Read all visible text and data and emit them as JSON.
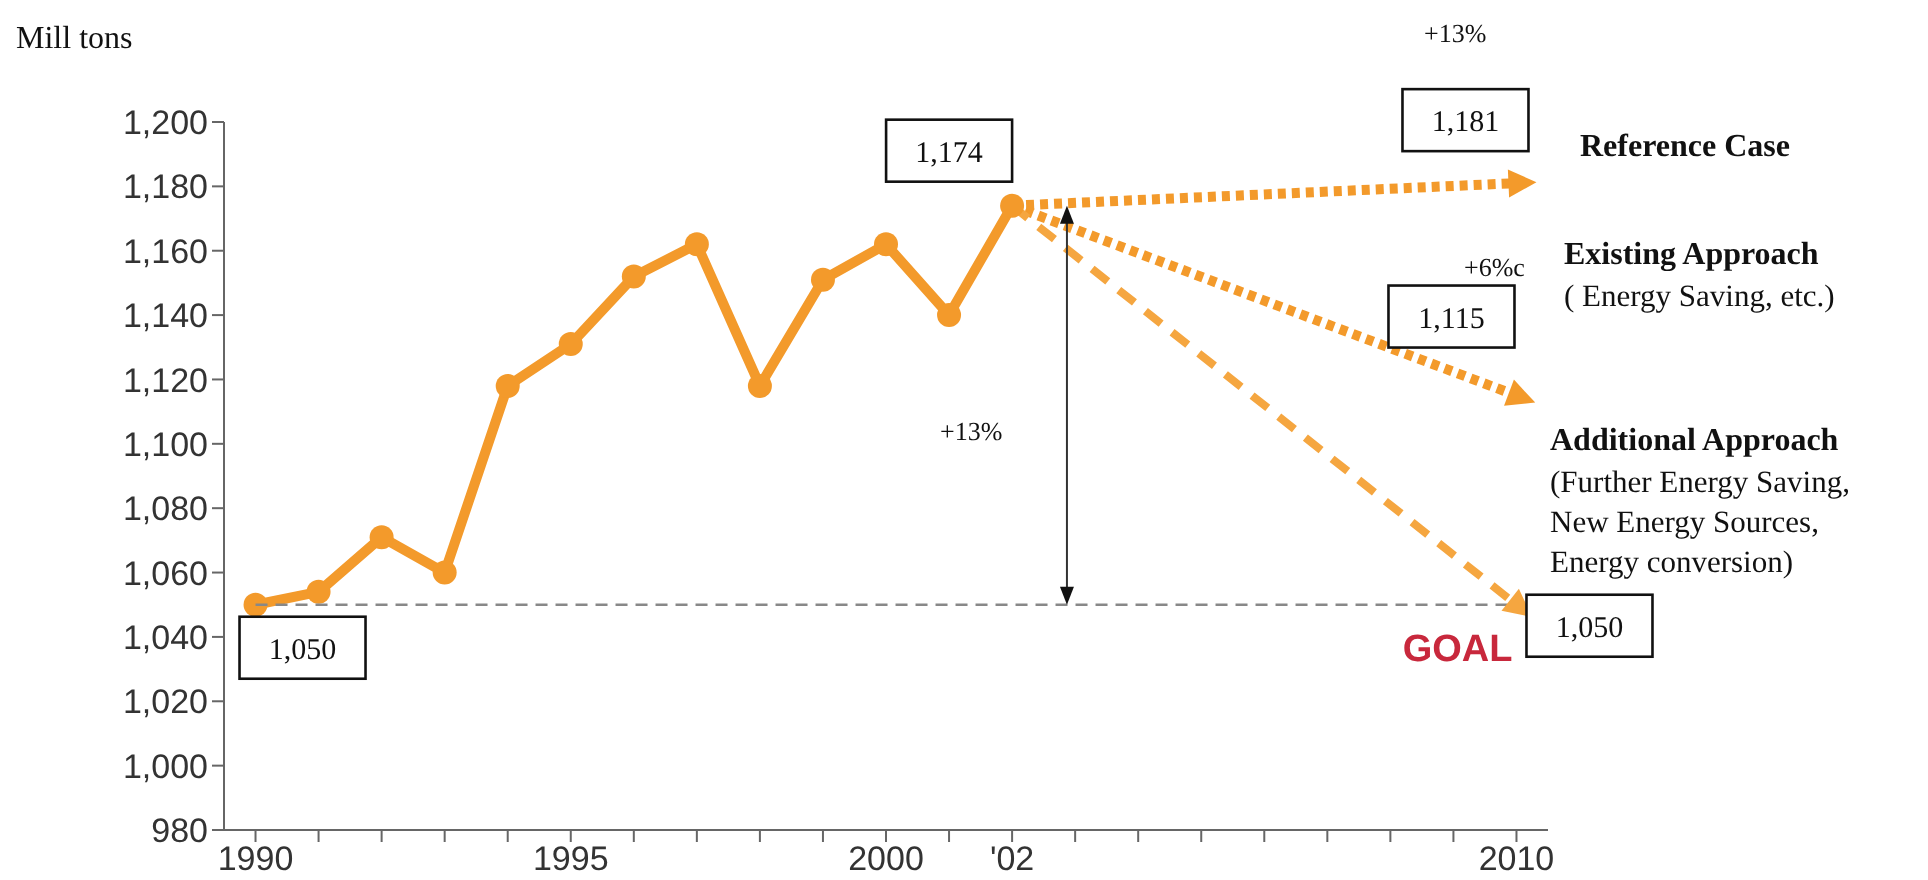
{
  "chart_data": {
    "type": "line",
    "ylabel": "Mill tons",
    "xlim": [
      1989.5,
      2010.5
    ],
    "xticks": [
      1990,
      {
        "value": 1991,
        "label": null
      },
      {
        "value": 1992,
        "label": null
      },
      {
        "value": 1993,
        "label": null
      },
      {
        "value": 1994,
        "label": null
      },
      1995,
      {
        "value": 1996,
        "label": null
      },
      {
        "value": 1997,
        "label": null
      },
      {
        "value": 1998,
        "label": null
      },
      {
        "value": 1999,
        "label": null
      },
      2000,
      {
        "value": 2001,
        "label": null
      },
      {
        "value": 2002,
        "label": "'02"
      },
      {
        "value": 2003,
        "label": null
      },
      {
        "value": 2004,
        "label": null
      },
      {
        "value": 2005,
        "label": null
      },
      {
        "value": 2006,
        "label": null
      },
      {
        "value": 2007,
        "label": null
      },
      {
        "value": 2008,
        "label": null
      },
      {
        "value": 2009,
        "label": null
      },
      2010
    ],
    "ylim": [
      980,
      1200
    ],
    "yticks": [
      {
        "value": 980,
        "label": "980"
      },
      {
        "value": 1000,
        "label": "1,000"
      },
      {
        "value": 1020,
        "label": "1,020"
      },
      {
        "value": 1040,
        "label": "1,040"
      },
      {
        "value": 1060,
        "label": "1,060"
      },
      {
        "value": 1080,
        "label": "1,080"
      },
      {
        "value": 1100,
        "label": "1,100"
      },
      {
        "value": 1120,
        "label": "1,120"
      },
      {
        "value": 1140,
        "label": "1,140"
      },
      {
        "value": 1160,
        "label": "1,160"
      },
      {
        "value": 1180,
        "label": "1,180"
      },
      {
        "value": 1200,
        "label": "1,200"
      }
    ],
    "series": [
      {
        "color": "#f39a2b",
        "marker": "circle",
        "line_style": "solid",
        "x": [
          1990,
          1991,
          1992,
          1993,
          1994,
          1995,
          1996,
          1997,
          1998,
          1999,
          2000,
          2001,
          2002
        ],
        "values": [
          1050,
          1054,
          1071,
          1060,
          1118,
          1131,
          1152,
          1162,
          1118,
          1151,
          1162,
          1140,
          1174
        ],
        "value_labels": [
          "1,050",
          null,
          null,
          null,
          null,
          null,
          null,
          null,
          null,
          null,
          null,
          null,
          "1,174"
        ]
      },
      {
        "name": "Reference Case",
        "color": "#f39a2b",
        "marker": "triangle",
        "line_style": "dotted",
        "x": [
          2002,
          2010
        ],
        "values": [
          1174,
          1181
        ],
        "value_labels": [
          null,
          "1,181"
        ]
      },
      {
        "name": "Existing Approach",
        "color": "#f39a2b",
        "marker": "triangle",
        "line_style": "dotted",
        "x": [
          2002,
          2010
        ],
        "values": [
          1174,
          1115
        ],
        "value_labels": [
          null,
          "1,115"
        ]
      },
      {
        "name": "Additional Approach",
        "color": "#f5a640",
        "marker": "triangle",
        "line_style": "dashed",
        "x": [
          2002,
          2010
        ],
        "values": [
          1174,
          1050
        ],
        "value_labels": [
          null,
          "1,050"
        ]
      }
    ],
    "ref_lines": [
      {
        "axis": "y",
        "value": 1050,
        "label": "GOAL",
        "color": "#888888",
        "line_style": "dashed"
      }
    ],
    "annotations": [
      "+13%",
      "+6%c",
      "+13%",
      "( Energy Saving, etc.)",
      "(Further Energy Saving, New Energy Sources, Energy conversion)"
    ],
    "tick_labels": true
  }
}
